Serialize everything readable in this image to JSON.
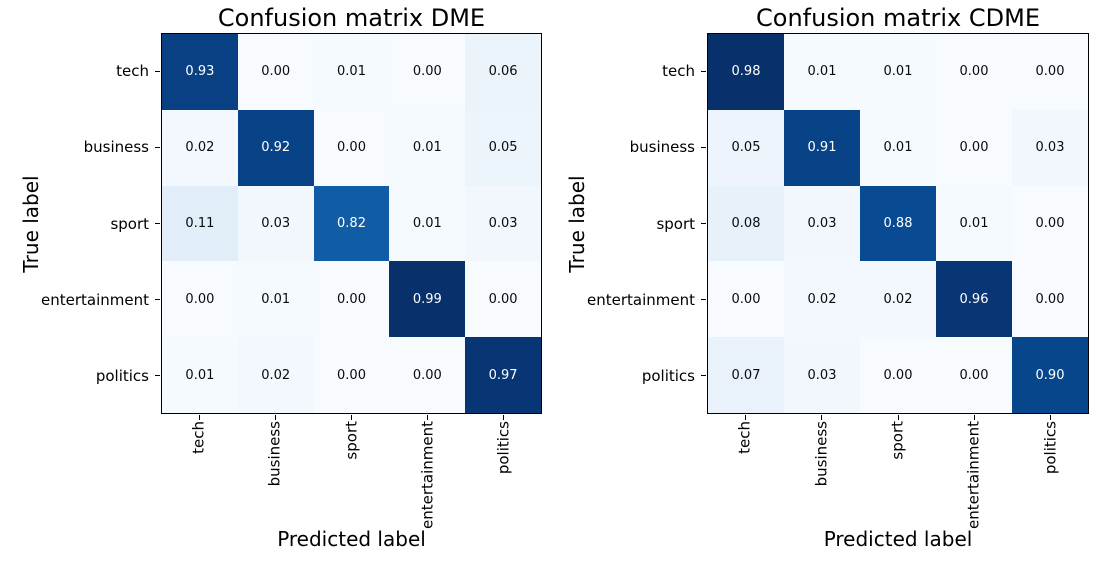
{
  "figure": {
    "background": "#ffffff"
  },
  "colors": {
    "colormap_stops": [
      "#f7fbff",
      "#deebf7",
      "#c6dbef",
      "#9ecae1",
      "#6baed6",
      "#4292c6",
      "#2171b5",
      "#08519c",
      "#08306b"
    ],
    "cell_text_dark": "#0a0a0a",
    "cell_text_light": "#ffffff",
    "spine": "#000000",
    "text": "#000000"
  },
  "chart_data": [
    {
      "type": "heatmap",
      "title": "Confusion matrix DME",
      "xlabel": "Predicted label",
      "ylabel": "True label",
      "x_tick_labels": [
        "tech",
        "business",
        "sport",
        "entertainment",
        "politics"
      ],
      "y_tick_labels": [
        "tech",
        "business",
        "sport",
        "entertainment",
        "politics"
      ],
      "matrix": [
        [
          0.93,
          0.0,
          0.01,
          0.0,
          0.06
        ],
        [
          0.02,
          0.92,
          0.0,
          0.01,
          0.05
        ],
        [
          0.11,
          0.03,
          0.82,
          0.01,
          0.03
        ],
        [
          0.0,
          0.01,
          0.0,
          0.99,
          0.0
        ],
        [
          0.01,
          0.02,
          0.0,
          0.0,
          0.97
        ]
      ],
      "value_decimals": 2,
      "colormap": "Blues",
      "vmin": 0,
      "vmax": 0.99,
      "grid": false,
      "legend": "none"
    },
    {
      "type": "heatmap",
      "title": "Confusion matrix CDME",
      "xlabel": "Predicted label",
      "ylabel": "True label",
      "x_tick_labels": [
        "tech",
        "business",
        "sport",
        "entertainment",
        "politics"
      ],
      "y_tick_labels": [
        "tech",
        "business",
        "sport",
        "entertainment",
        "politics"
      ],
      "matrix": [
        [
          0.98,
          0.01,
          0.01,
          0.0,
          0.0
        ],
        [
          0.05,
          0.91,
          0.01,
          0.0,
          0.03
        ],
        [
          0.08,
          0.03,
          0.88,
          0.01,
          0.0
        ],
        [
          0.0,
          0.02,
          0.02,
          0.96,
          0.0
        ],
        [
          0.07,
          0.03,
          0.0,
          0.0,
          0.9
        ]
      ],
      "value_decimals": 2,
      "colormap": "Blues",
      "vmin": 0,
      "vmax": 0.98,
      "grid": false,
      "legend": "none"
    }
  ]
}
